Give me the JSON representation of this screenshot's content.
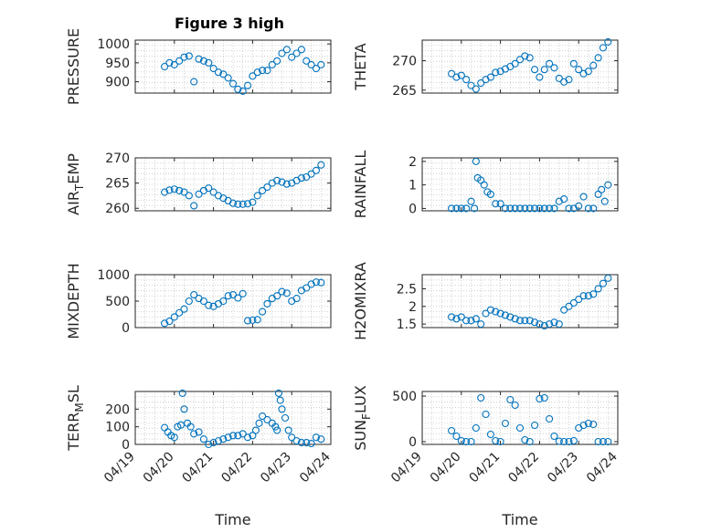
{
  "title": "Figure 3 high",
  "colors": {
    "marker": "#0072BD",
    "axis": "#262626",
    "grid": "#b8b8b8"
  },
  "chart_data": [
    {
      "type": "scatter",
      "ylabel": "PRESSURE",
      "xlabel": "",
      "xlim": [
        "04/19",
        "04/24"
      ],
      "ylim": [
        870,
        1010
      ],
      "yticks": [
        900,
        950,
        1000
      ],
      "ytick_labels": [
        "900",
        "950",
        "1000"
      ],
      "grid": true,
      "legend": "none",
      "series": [
        {
          "x": [],
          "y": []
        }
      ],
      "x": [
        "04/19 18:00",
        "04/19 21:00",
        "04/20 00:00",
        "04/20 03:00",
        "04/20 06:00",
        "04/20 09:00",
        "04/20 12:00",
        "04/20 15:00",
        "04/20 18:00",
        "04/20 21:00",
        "04/21 00:00",
        "04/21 03:00",
        "04/21 06:00",
        "04/21 09:00",
        "04/21 12:00",
        "04/21 15:00",
        "04/21 18:00",
        "04/21 21:00",
        "04/22 00:00",
        "04/22 03:00",
        "04/22 06:00",
        "04/22 09:00",
        "04/22 12:00",
        "04/22 15:00",
        "04/22 18:00",
        "04/22 21:00",
        "04/23 00:00",
        "04/23 03:00",
        "04/23 06:00",
        "04/23 09:00",
        "04/23 12:00",
        "04/23 15:00",
        "04/23 18:00"
      ],
      "y": [
        940,
        950,
        945,
        955,
        965,
        968,
        900,
        960,
        955,
        950,
        935,
        925,
        920,
        910,
        895,
        880,
        875,
        890,
        915,
        925,
        930,
        930,
        945,
        955,
        975,
        985,
        965,
        975,
        985,
        955,
        945,
        935,
        945
      ]
    },
    {
      "type": "scatter",
      "ylabel": "THETA",
      "xlabel": "",
      "xlim": [
        "04/19",
        "04/24"
      ],
      "ylim": [
        264.5,
        273.5
      ],
      "yticks": [
        265,
        270
      ],
      "ytick_labels": [
        "265",
        "270"
      ],
      "grid": true,
      "legend": "none",
      "x": [
        "04/19 18:00",
        "04/19 21:00",
        "04/20 00:00",
        "04/20 03:00",
        "04/20 06:00",
        "04/20 09:00",
        "04/20 12:00",
        "04/20 15:00",
        "04/20 18:00",
        "04/20 21:00",
        "04/21 00:00",
        "04/21 03:00",
        "04/21 06:00",
        "04/21 09:00",
        "04/21 12:00",
        "04/21 15:00",
        "04/21 18:00",
        "04/21 21:00",
        "04/22 00:00",
        "04/22 03:00",
        "04/22 06:00",
        "04/22 09:00",
        "04/22 12:00",
        "04/22 15:00",
        "04/22 18:00",
        "04/22 21:00",
        "04/23 00:00",
        "04/23 03:00",
        "04/23 06:00",
        "04/23 09:00",
        "04/23 12:00",
        "04/23 15:00",
        "04/23 18:00"
      ],
      "y": [
        267.8,
        267.2,
        267.5,
        266.8,
        265.8,
        265.2,
        266.2,
        266.8,
        267.2,
        268,
        268.2,
        268.6,
        269,
        269.5,
        270.2,
        270.8,
        270.5,
        268.5,
        267.2,
        268.5,
        269.5,
        268.8,
        267,
        266.4,
        266.8,
        269.5,
        268.5,
        267.8,
        268.2,
        269.2,
        270.5,
        272.2,
        273.2
      ]
    },
    {
      "type": "scatter",
      "ylabel": "AIR_TEMP",
      "xlabel": "",
      "xlim": [
        "04/19",
        "04/24"
      ],
      "ylim": [
        259.5,
        270
      ],
      "yticks": [
        260,
        265,
        270
      ],
      "ytick_labels": [
        "260",
        "265",
        "270"
      ],
      "grid": true,
      "legend": "none",
      "x": [
        "04/19 18:00",
        "04/19 21:00",
        "04/20 00:00",
        "04/20 03:00",
        "04/20 06:00",
        "04/20 09:00",
        "04/20 12:00",
        "04/20 15:00",
        "04/20 18:00",
        "04/20 21:00",
        "04/21 00:00",
        "04/21 03:00",
        "04/21 06:00",
        "04/21 09:00",
        "04/21 12:00",
        "04/21 15:00",
        "04/21 18:00",
        "04/21 21:00",
        "04/22 00:00",
        "04/22 03:00",
        "04/22 06:00",
        "04/22 09:00",
        "04/22 12:00",
        "04/22 15:00",
        "04/22 18:00",
        "04/22 21:00",
        "04/23 00:00",
        "04/23 03:00",
        "04/23 06:00",
        "04/23 09:00",
        "04/23 12:00",
        "04/23 15:00",
        "04/23 18:00"
      ],
      "y": [
        263.2,
        263.6,
        263.8,
        263.5,
        263.2,
        262.5,
        260.5,
        262.8,
        263.5,
        264,
        263.2,
        262.5,
        262,
        261.5,
        261,
        260.8,
        260.8,
        260.9,
        261.2,
        262.5,
        263.5,
        264.2,
        265,
        265.5,
        265.2,
        264.8,
        265,
        265.5,
        266,
        266.2,
        266.8,
        267.5,
        268.6
      ]
    },
    {
      "type": "scatter",
      "ylabel": "RAINFALL",
      "xlabel": "",
      "xlim": [
        "04/19",
        "04/24"
      ],
      "ylim": [
        -0.1,
        2.15
      ],
      "yticks": [
        0,
        1,
        2
      ],
      "ytick_labels": [
        "0",
        "1",
        "2"
      ],
      "grid": true,
      "legend": "none",
      "x": [
        "04/19 18:00",
        "04/19 21:00",
        "04/20 00:00",
        "04/20 03:00",
        "04/20 06:00",
        "04/20 08:00",
        "04/20 09:00",
        "04/20 10:00",
        "04/20 12:00",
        "04/20 14:00",
        "04/20 16:00",
        "04/20 18:00",
        "04/20 21:00",
        "04/21 00:00",
        "04/21 03:00",
        "04/21 06:00",
        "04/21 09:00",
        "04/21 12:00",
        "04/21 15:00",
        "04/21 18:00",
        "04/21 21:00",
        "04/22 00:00",
        "04/22 03:00",
        "04/22 06:00",
        "04/22 09:00",
        "04/22 12:00",
        "04/22 15:00",
        "04/22 18:00",
        "04/22 21:00",
        "04/23 00:00",
        "04/23 03:00",
        "04/23 06:00",
        "04/23 09:00",
        "04/23 12:00",
        "04/23 14:00",
        "04/23 16:00",
        "04/23 18:00"
      ],
      "y": [
        0,
        0,
        0,
        0,
        0.3,
        0,
        2.0,
        1.3,
        1.2,
        1.0,
        0.7,
        0.6,
        0.2,
        0.2,
        0,
        0,
        0,
        0,
        0,
        0,
        0,
        0,
        0,
        0,
        0,
        0.3,
        0.4,
        0,
        0,
        0.1,
        0.5,
        0,
        0,
        0.6,
        0.8,
        0.3,
        1.0
      ]
    },
    {
      "type": "scatter",
      "ylabel": "MIXDEPTH",
      "xlabel": "",
      "xlim": [
        "04/19",
        "04/24"
      ],
      "ylim": [
        0,
        1000
      ],
      "yticks": [
        0,
        500,
        1000
      ],
      "ytick_labels": [
        "0",
        "500",
        "1000"
      ],
      "grid": true,
      "legend": "none",
      "x": [
        "04/19 18:00",
        "04/19 21:00",
        "04/20 00:00",
        "04/20 03:00",
        "04/20 06:00",
        "04/20 09:00",
        "04/20 12:00",
        "04/20 15:00",
        "04/20 18:00",
        "04/20 21:00",
        "04/21 00:00",
        "04/21 03:00",
        "04/21 06:00",
        "04/21 09:00",
        "04/21 12:00",
        "04/21 15:00",
        "04/21 18:00",
        "04/21 21:00",
        "04/22 00:00",
        "04/22 03:00",
        "04/22 06:00",
        "04/22 09:00",
        "04/22 12:00",
        "04/22 15:00",
        "04/22 18:00",
        "04/22 21:00",
        "04/23 00:00",
        "04/23 03:00",
        "04/23 06:00",
        "04/23 09:00",
        "04/23 12:00",
        "04/23 15:00",
        "04/23 18:00"
      ],
      "y": [
        80,
        120,
        200,
        280,
        350,
        500,
        620,
        550,
        500,
        420,
        400,
        450,
        500,
        600,
        620,
        560,
        640,
        130,
        140,
        150,
        300,
        450,
        550,
        600,
        680,
        650,
        500,
        550,
        700,
        750,
        820,
        860,
        850
      ]
    },
    {
      "type": "scatter",
      "ylabel": "H2OMIXRA",
      "xlabel": "",
      "xlim": [
        "04/19",
        "04/24"
      ],
      "ylim": [
        1.4,
        2.9
      ],
      "yticks": [
        1.5,
        2,
        2.5
      ],
      "ytick_labels": [
        "1.5",
        "2",
        "2.5"
      ],
      "grid": true,
      "legend": "none",
      "x": [
        "04/19 18:00",
        "04/19 21:00",
        "04/20 00:00",
        "04/20 03:00",
        "04/20 06:00",
        "04/20 09:00",
        "04/20 12:00",
        "04/20 15:00",
        "04/20 18:00",
        "04/20 21:00",
        "04/21 00:00",
        "04/21 03:00",
        "04/21 06:00",
        "04/21 09:00",
        "04/21 12:00",
        "04/21 15:00",
        "04/21 18:00",
        "04/21 21:00",
        "04/22 00:00",
        "04/22 03:00",
        "04/22 06:00",
        "04/22 09:00",
        "04/22 12:00",
        "04/22 15:00",
        "04/22 18:00",
        "04/22 21:00",
        "04/23 00:00",
        "04/23 03:00",
        "04/23 06:00",
        "04/23 09:00",
        "04/23 12:00",
        "04/23 15:00",
        "04/23 18:00"
      ],
      "y": [
        1.7,
        1.65,
        1.7,
        1.6,
        1.6,
        1.65,
        1.5,
        1.8,
        1.9,
        1.85,
        1.8,
        1.75,
        1.7,
        1.65,
        1.6,
        1.6,
        1.6,
        1.55,
        1.5,
        1.45,
        1.5,
        1.55,
        1.5,
        1.9,
        2.0,
        2.1,
        2.2,
        2.3,
        2.3,
        2.35,
        2.5,
        2.65,
        2.8
      ]
    },
    {
      "type": "scatter",
      "ylabel": "TERR_MSL",
      "xlabel": "Time",
      "xlim": [
        "04/19",
        "04/24"
      ],
      "ylim": [
        0,
        300
      ],
      "yticks": [
        0,
        100,
        200
      ],
      "ytick_labels": [
        "0",
        "100",
        "200"
      ],
      "xticks": [
        "04/19",
        "04/20",
        "04/21",
        "04/22",
        "04/23",
        "04/24"
      ],
      "grid": true,
      "legend": "none",
      "x": [
        "04/19 18:00",
        "04/19 20:00",
        "04/19 22:00",
        "04/20 00:00",
        "04/20 02:00",
        "04/20 04:00",
        "04/20 05:00",
        "04/20 06:00",
        "04/20 08:00",
        "04/20 10:00",
        "04/20 12:00",
        "04/20 15:00",
        "04/20 18:00",
        "04/20 21:00",
        "04/21 00:00",
        "04/21 03:00",
        "04/21 06:00",
        "04/21 09:00",
        "04/21 12:00",
        "04/21 15:00",
        "04/21 18:00",
        "04/21 21:00",
        "04/22 00:00",
        "04/22 02:00",
        "04/22 04:00",
        "04/22 06:00",
        "04/22 09:00",
        "04/22 12:00",
        "04/22 14:00",
        "04/22 15:00",
        "04/22 16:00",
        "04/22 17:00",
        "04/22 18:00",
        "04/22 20:00",
        "04/22 22:00",
        "04/23 00:00",
        "04/23 03:00",
        "04/23 06:00",
        "04/23 09:00",
        "04/23 12:00",
        "04/23 15:00",
        "04/23 18:00"
      ],
      "y": [
        95,
        70,
        50,
        40,
        100,
        110,
        290,
        200,
        120,
        100,
        60,
        70,
        30,
        0,
        10,
        20,
        30,
        40,
        50,
        50,
        60,
        40,
        50,
        80,
        120,
        160,
        140,
        120,
        100,
        80,
        290,
        250,
        200,
        150,
        80,
        40,
        20,
        10,
        10,
        5,
        40,
        30
      ]
    },
    {
      "type": "scatter",
      "ylabel": "SUN_FLUX",
      "xlabel": "Time",
      "xlim": [
        "04/19",
        "04/24"
      ],
      "ylim": [
        -30,
        550
      ],
      "yticks": [
        0,
        500
      ],
      "ytick_labels": [
        "0",
        "500"
      ],
      "xticks": [
        "04/19",
        "04/20",
        "04/21",
        "04/22",
        "04/23",
        "04/24"
      ],
      "grid": true,
      "legend": "none",
      "x": [
        "04/19 18:00",
        "04/19 21:00",
        "04/20 00:00",
        "04/20 03:00",
        "04/20 06:00",
        "04/20 09:00",
        "04/20 12:00",
        "04/20 15:00",
        "04/20 18:00",
        "04/20 21:00",
        "04/21 00:00",
        "04/21 03:00",
        "04/21 06:00",
        "04/21 09:00",
        "04/21 12:00",
        "04/21 15:00",
        "04/21 18:00",
        "04/21 21:00",
        "04/22 00:00",
        "04/22 03:00",
        "04/22 06:00",
        "04/22 09:00",
        "04/22 12:00",
        "04/22 15:00",
        "04/22 18:00",
        "04/22 21:00",
        "04/23 00:00",
        "04/23 03:00",
        "04/23 06:00",
        "04/23 09:00",
        "04/23 12:00",
        "04/23 15:00",
        "04/23 18:00"
      ],
      "y": [
        120,
        60,
        10,
        0,
        0,
        150,
        480,
        300,
        80,
        10,
        0,
        200,
        460,
        400,
        150,
        20,
        0,
        180,
        470,
        480,
        250,
        60,
        5,
        0,
        0,
        10,
        150,
        180,
        200,
        190,
        0,
        0,
        0
      ]
    }
  ]
}
